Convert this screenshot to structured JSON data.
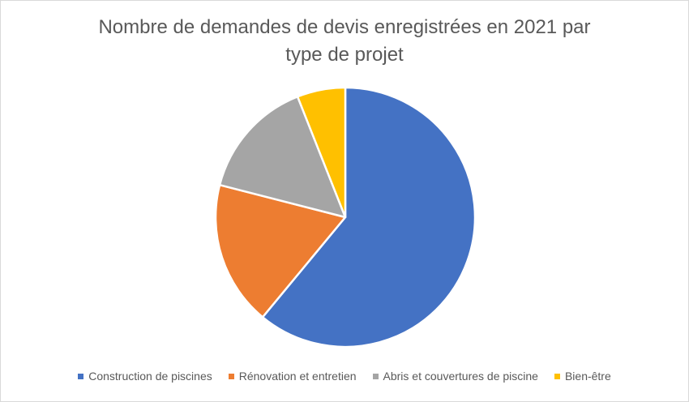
{
  "chart_data": {
    "type": "pie",
    "title_lines": [
      "Nombre de demandes de devis enregistrées en 2021 par",
      "type de projet"
    ],
    "categories": [
      "Construction de piscines",
      "Rénovation et entretien",
      "Abris et couvertures de piscine",
      "Bien-être"
    ],
    "values": [
      61,
      18,
      15,
      6
    ],
    "colors": [
      "#4472c4",
      "#ed7d31",
      "#a5a5a5",
      "#ffc000"
    ],
    "legend_position": "bottom",
    "start_angle": "12 o'clock, clockwise"
  }
}
